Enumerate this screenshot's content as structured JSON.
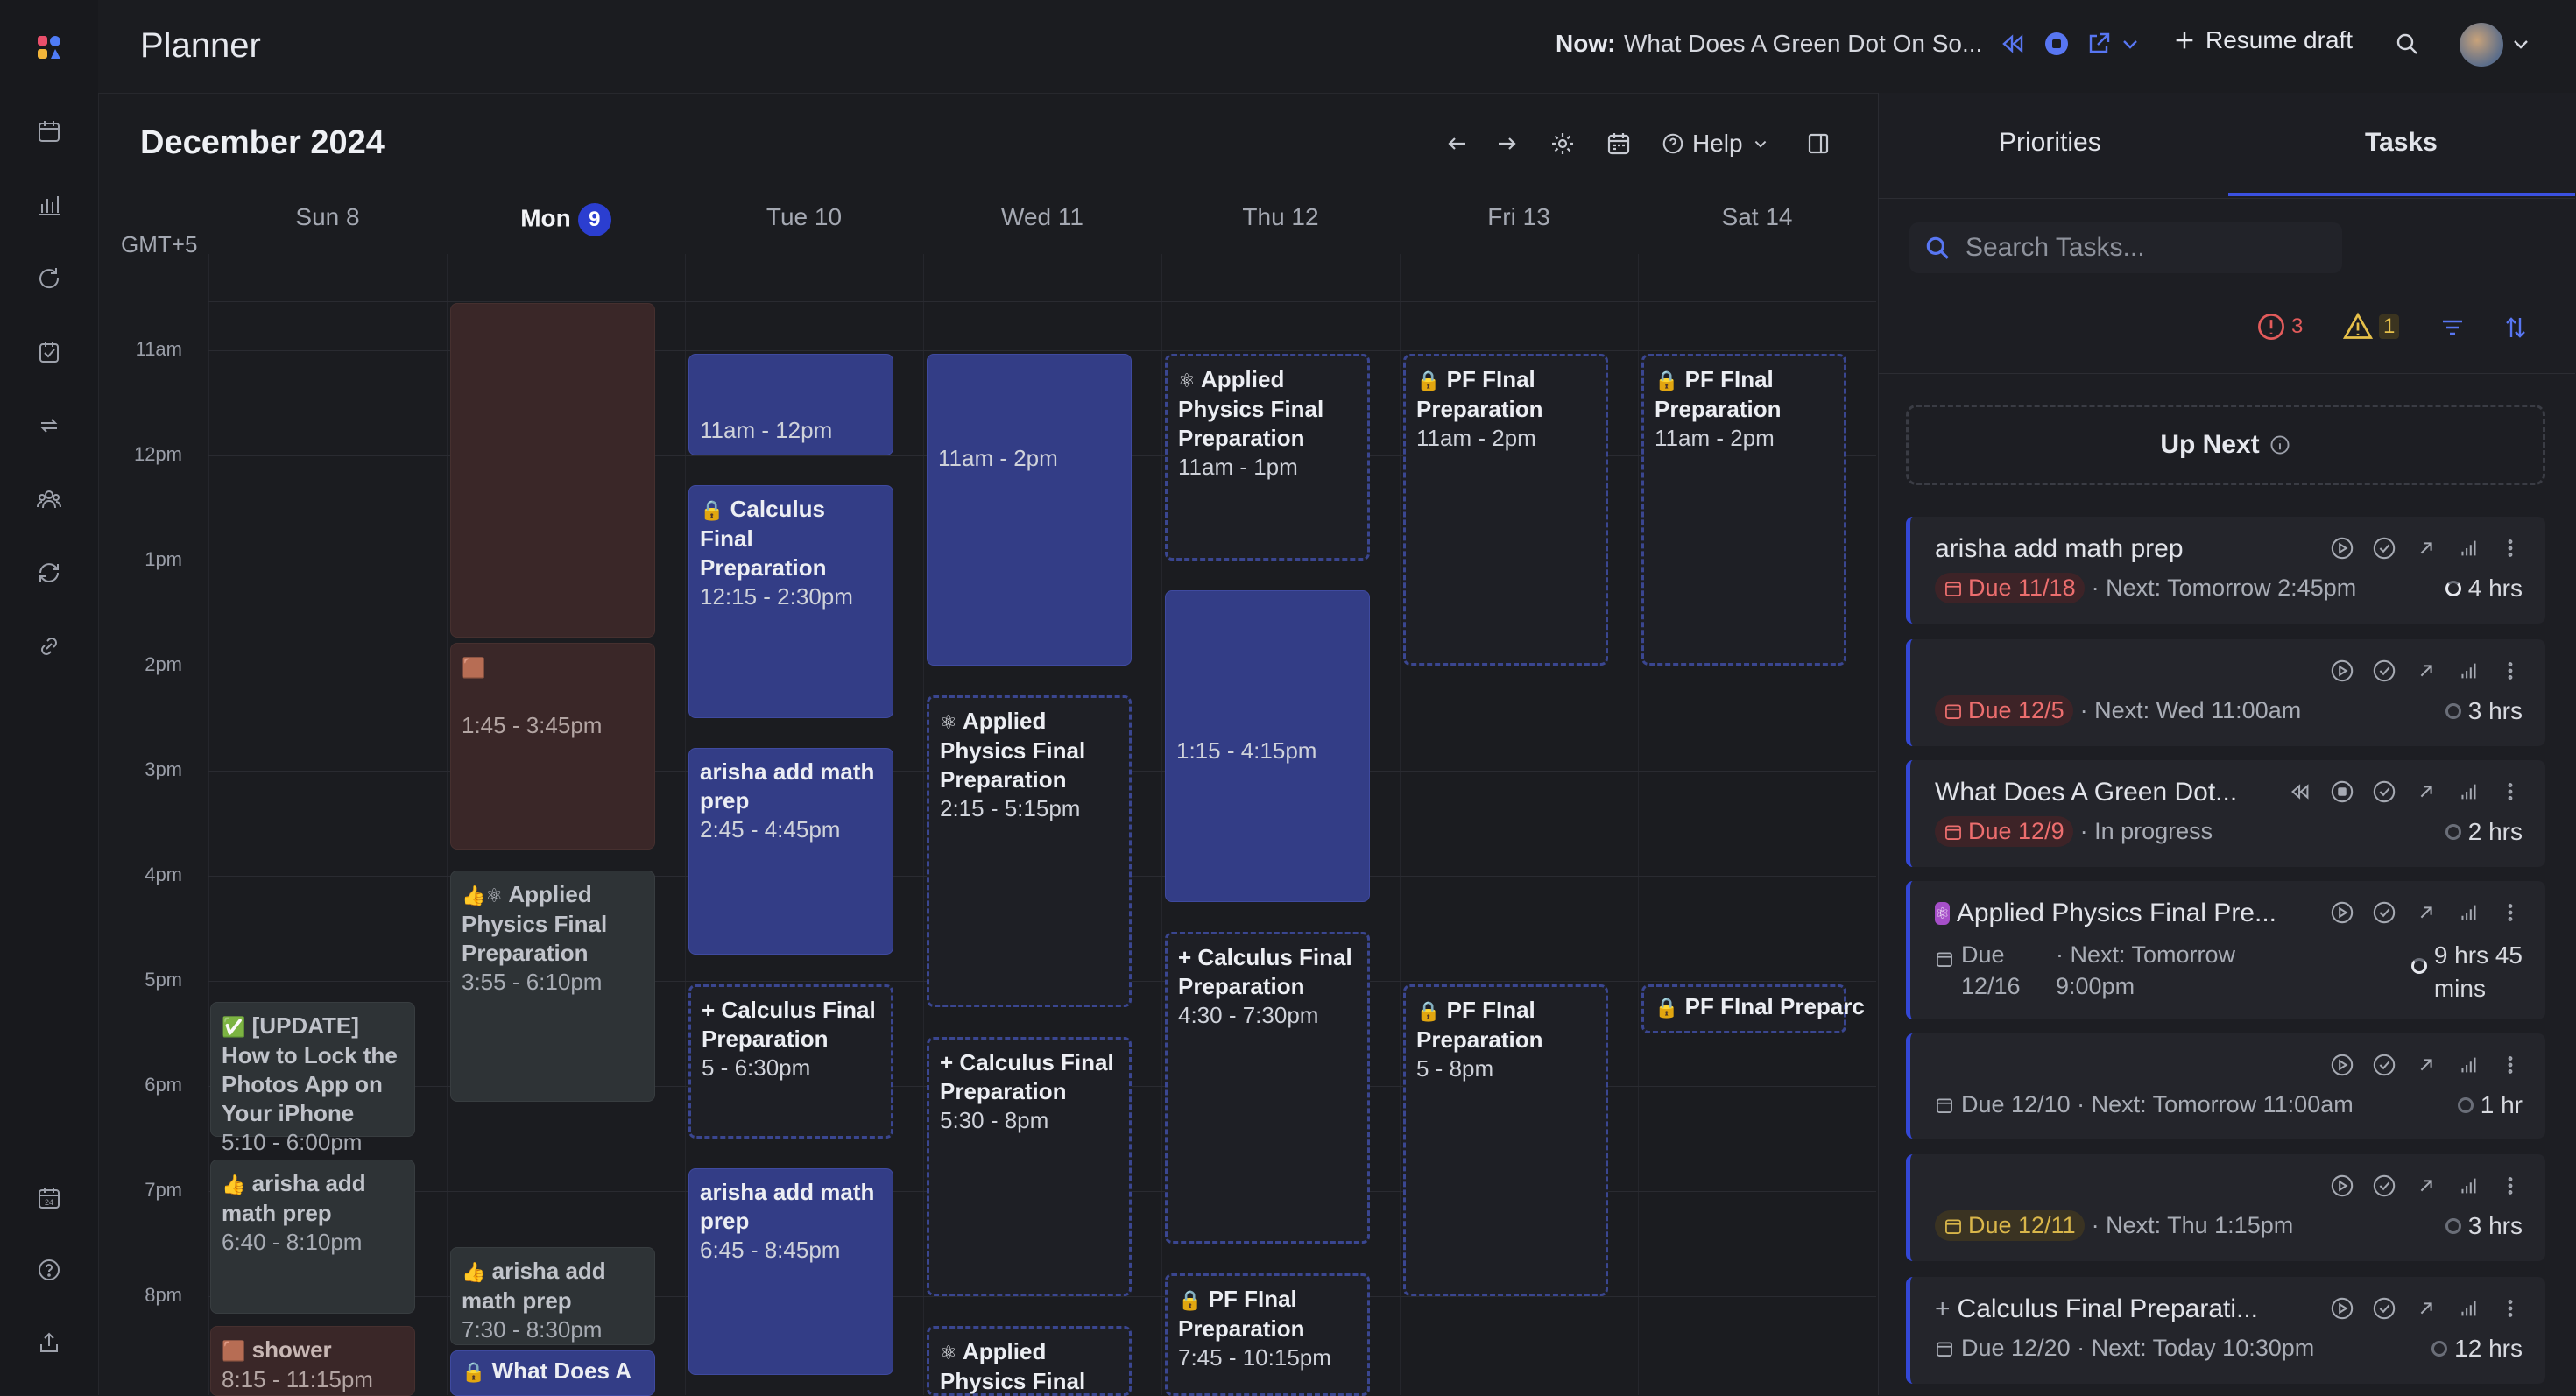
{
  "app": {
    "title": "Planner"
  },
  "topbar": {
    "now_label": "Now:",
    "now_text": "What Does A Green Dot On So...",
    "resume_draft": "Resume draft"
  },
  "calendar": {
    "month": "December 2024",
    "help": "Help",
    "timezone": "GMT+5",
    "days": [
      {
        "label": "Sun 8"
      },
      {
        "label": "Mon",
        "badge": "9"
      },
      {
        "label": "Tue 10"
      },
      {
        "label": "Wed 11"
      },
      {
        "label": "Thu 12"
      },
      {
        "label": "Fri 13"
      },
      {
        "label": "Sat 14"
      }
    ],
    "hours": [
      "11am",
      "12pm",
      "1pm",
      "2pm",
      "3pm",
      "4pm",
      "5pm",
      "6pm",
      "7pm",
      "8pm"
    ],
    "events": {
      "sun_update": {
        "icon": "✅",
        "title": "[UPDATE] How to Lock the Photos App on Your iPhone",
        "time": "5:10 - 6:00pm"
      },
      "sun_arisha": {
        "icon": "👍",
        "title": "arisha add math prep",
        "time": "6:40 - 8:10pm"
      },
      "sun_shower": {
        "icon": "🟫",
        "title": "shower",
        "time": "8:15 - 11:15pm"
      },
      "mon_block2": {
        "icon": "🟫",
        "time": "1:45 - 3:45pm"
      },
      "mon_applied": {
        "icon": "👍⚛",
        "title": "Applied Physics Final Preparation",
        "time": "3:55 - 6:10pm"
      },
      "mon_arisha": {
        "icon": "👍",
        "title": "arisha add math prep",
        "time": "7:30 - 8:30pm"
      },
      "mon_whatdoes": {
        "icon": "🔒",
        "title": "What Does A"
      },
      "tue_slot": {
        "time": "11am - 12pm"
      },
      "tue_calc": {
        "icon": "🔒",
        "title": "Calculus Final Preparation",
        "time": "12:15 - 2:30pm"
      },
      "tue_arisha1": {
        "title": "arisha add math prep",
        "time": "2:45 - 4:45pm"
      },
      "tue_calc2": {
        "icon": "+",
        "title": "Calculus Final Preparation",
        "time": "5 - 6:30pm"
      },
      "tue_arisha2": {
        "title": "arisha add math prep",
        "time": "6:45 - 8:45pm"
      },
      "wed_slot": {
        "time": "11am - 2pm"
      },
      "wed_applied": {
        "icon": "⚛",
        "title": "Applied Physics Final Preparation",
        "time": "2:15 - 5:15pm"
      },
      "wed_calc": {
        "icon": "+",
        "title": "Calculus Final Preparation",
        "time": "5:30 - 8pm"
      },
      "wed_applied2": {
        "icon": "⚛",
        "title": "Applied Physics Final"
      },
      "thu_applied": {
        "icon": "⚛",
        "title": "Applied Physics Final Preparation",
        "time": "11am - 1pm"
      },
      "thu_slot": {
        "time": "1:15 - 4:15pm"
      },
      "thu_calc": {
        "icon": "+",
        "title": "Calculus Final Preparation",
        "time": "4:30 - 7:30pm"
      },
      "thu_pf": {
        "icon": "🔒",
        "title": "PF FInal Preparation",
        "time": "7:45 - 10:15pm"
      },
      "fri_pf1": {
        "icon": "🔒",
        "title": "PF FInal Preparation",
        "time": "11am - 2pm"
      },
      "fri_pf2": {
        "icon": "🔒",
        "title": "PF FInal Preparation",
        "time": "5 - 8pm"
      },
      "sat_pf1": {
        "icon": "🔒",
        "title": "PF FInal Preparation",
        "time": "11am - 2pm"
      },
      "sat_pf2": {
        "icon": "🔒",
        "title": "PF FInal Preparc"
      }
    }
  },
  "panel": {
    "tabs": [
      "Priorities",
      "Tasks"
    ],
    "active_tab": "Tasks",
    "search_placeholder": "Search Tasks...",
    "error_count": "3",
    "warning_count": "1",
    "up_next": "Up Next",
    "tasks": [
      {
        "name": "arisha add math prep",
        "due": "Due 11/18",
        "next": "· Next: Tomorrow 2:45pm",
        "duration": "4 hrs"
      },
      {
        "name": "",
        "due": "Due 12/5",
        "next": "· Next: Wed 11:00am",
        "duration": "3 hrs"
      },
      {
        "name": "What Does A Green Dot...",
        "due": "Due 12/9",
        "next": "· In progress",
        "duration": "2 hrs"
      },
      {
        "name": "Applied Physics Final Pre...",
        "due_line1": "Due",
        "due_line2": "12/16",
        "next_line1": "· Next: Tomorrow",
        "next_line2": "9:00pm",
        "dur_line1": "9 hrs 45",
        "dur_line2": "mins"
      },
      {
        "name": "",
        "due": "Due 12/10 · Next: Tomorrow 11:00am",
        "duration": "1 hr"
      },
      {
        "name": "",
        "due": "Due 12/11",
        "next": "· Next: Thu 1:15pm",
        "duration": "3 hrs"
      },
      {
        "name": "Calculus Final Preparati...",
        "due": "Due 12/20 · Next: Today 10:30pm",
        "duration": "12 hrs"
      }
    ]
  }
}
